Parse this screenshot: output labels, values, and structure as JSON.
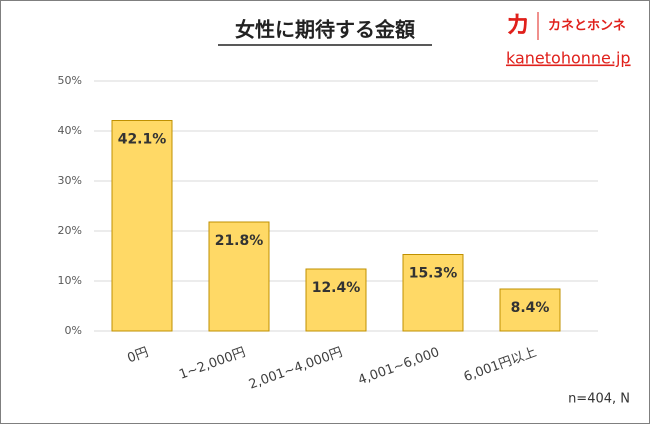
{
  "chart_data": {
    "type": "bar",
    "title": "女性に期待する金額",
    "logo_mark": "カ",
    "logo_text": "カネとホンネ",
    "logo_url": "kanetohonne.jp",
    "categories": [
      "0円",
      "1~2,000円",
      "2,001~4,000円",
      "4,001~6,000",
      "6,001円以上"
    ],
    "values": [
      42.1,
      21.8,
      12.4,
      15.3,
      8.4
    ],
    "value_labels": [
      "42.1%",
      "21.8%",
      "12.4%",
      "15.3%",
      "8.4%"
    ],
    "color": "#ffd966",
    "edge_color": "#bf9000",
    "ylim": [
      0,
      50
    ],
    "yticks": [
      {
        "value": 0,
        "label": "0%"
      },
      {
        "value": 10,
        "label": "10%"
      },
      {
        "value": 20,
        "label": "20%"
      },
      {
        "value": 30,
        "label": "30%"
      },
      {
        "value": 40,
        "label": "40%"
      },
      {
        "value": 50,
        "label": "50%"
      }
    ],
    "grid": true,
    "note": "n=404, N"
  }
}
